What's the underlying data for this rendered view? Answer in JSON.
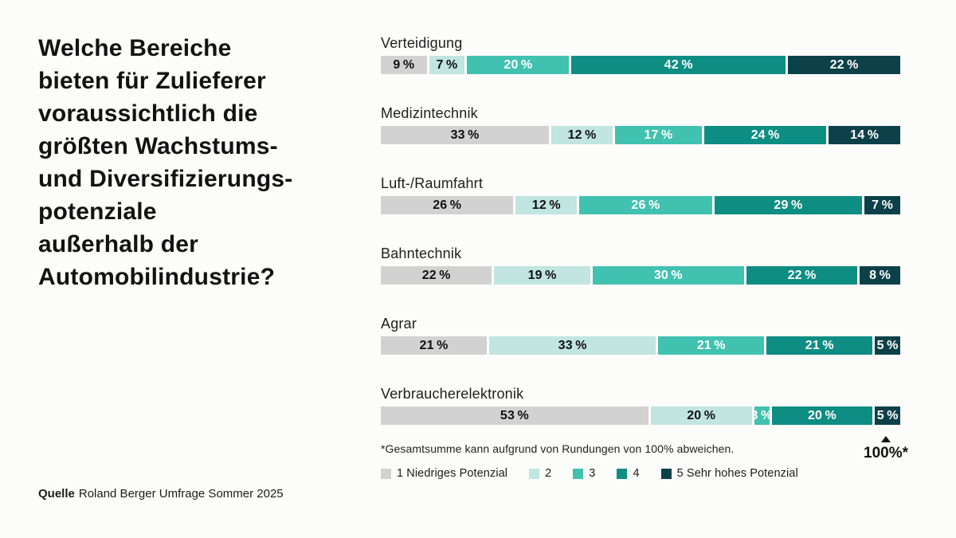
{
  "page": {
    "background": "#fcfcfa",
    "question_title": "Welche Bereiche\nbieten für Zulieferer\nvoraussichtlich die\ngrößten Wachstums-\nund Diversifizierungs-\npotenziale\naußerhalb der\nAutomobilindustrie?",
    "footnote": "*Gesamtsumme kann aufgrund von Rundungen von 100% abweichen.",
    "total_marker": "100%*",
    "source": {
      "label": "Quelle",
      "text": "Roland Berger Umfrage Sommer 2025"
    }
  },
  "chart_data": {
    "type": "bar",
    "variant": "horizontal-stacked",
    "title": "Welche Bereiche bieten für Zulieferer voraussichtlich die größten Wachstums- und Diversifizierungspotenziale außerhalb der Automobilindustrie?",
    "unit": "%",
    "xlim": [
      0,
      100
    ],
    "grid": false,
    "legend_position": "bottom",
    "categories": [
      "Verteidigung",
      "Medizintechnik",
      "Luft-/Raumfahrt",
      "Bahntechnik",
      "Agrar",
      "Verbraucherelektronik"
    ],
    "series": [
      {
        "name": "1 Niedriges Potenzial",
        "color": "#d2d2d2",
        "label_color": "#111111",
        "values": [
          9,
          33,
          26,
          22,
          21,
          53
        ]
      },
      {
        "name": "2",
        "color": "#c1e5e1",
        "label_color": "#111111",
        "values": [
          7,
          12,
          12,
          19,
          33,
          20
        ]
      },
      {
        "name": "3",
        "color": "#41c1b0",
        "label_color": "#ffffff",
        "values": [
          20,
          17,
          26,
          30,
          21,
          3
        ]
      },
      {
        "name": "4",
        "color": "#0e8d83",
        "label_color": "#ffffff",
        "values": [
          42,
          24,
          29,
          22,
          21,
          20
        ]
      },
      {
        "name": "5 Sehr hohes Potenzial",
        "color": "#0d4149",
        "label_color": "#ffffff",
        "values": [
          22,
          14,
          7,
          8,
          5,
          5
        ]
      }
    ],
    "footnote": "*Gesamtsumme kann aufgrund von Rundungen von 100% abweichen.",
    "source": "Quelle Roland Berger Umfrage Sommer 2025"
  }
}
